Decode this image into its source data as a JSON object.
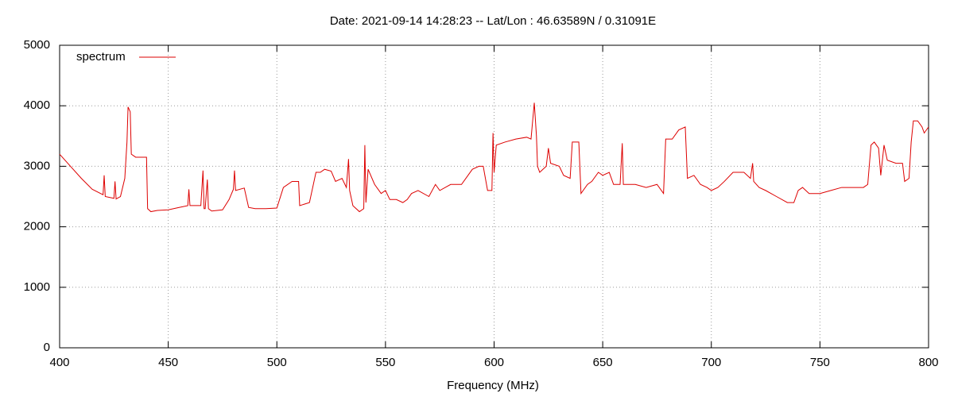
{
  "chart_data": {
    "type": "line",
    "title": "Date: 2021-09-14 14:28:23  --  Lat/Lon : 46.63589N / 0.31091E",
    "x_label": "Frequency (MHz)",
    "x": [
      400,
      405,
      410,
      415,
      420,
      420.5,
      421,
      425,
      425.5,
      426,
      428,
      430,
      431,
      431.5,
      432.5,
      433,
      435,
      440,
      440.5,
      442,
      445,
      450,
      455,
      459,
      459.5,
      460,
      465,
      466,
      466.5,
      467,
      468,
      468.5,
      470,
      475,
      478,
      480,
      480.5,
      481,
      485,
      487,
      490,
      495,
      500,
      503,
      507,
      510,
      510.5,
      515,
      518,
      520,
      522,
      525,
      527,
      530,
      532,
      533,
      533.5,
      535,
      538,
      540,
      540.5,
      541,
      542,
      545,
      548,
      550,
      552,
      555,
      558,
      560,
      562,
      565,
      570,
      573,
      575,
      580,
      585,
      588,
      590,
      593,
      595,
      597,
      599,
      599.5,
      600,
      601,
      605,
      610,
      615,
      617,
      618.5,
      619.5,
      620,
      621,
      624,
      625,
      626,
      630,
      632,
      635,
      636,
      639,
      640,
      643,
      645,
      648,
      650,
      653,
      655,
      658,
      659,
      659.5,
      662,
      665,
      670,
      675,
      678,
      679,
      682,
      685,
      688,
      689,
      692,
      695,
      698,
      700,
      703,
      706,
      710,
      715,
      718,
      719,
      719.5,
      722,
      725,
      730,
      735,
      738,
      740,
      742,
      745,
      750,
      755,
      760,
      765,
      770,
      772,
      773.5,
      775,
      777,
      778,
      779.5,
      781,
      785,
      788,
      789,
      791,
      792,
      793,
      795,
      797,
      798,
      800
    ],
    "series": [
      {
        "name": "spectrum",
        "color": "#dd0000",
        "values": [
          3200,
          3000,
          2800,
          2620,
          2530,
          2850,
          2500,
          2470,
          2750,
          2460,
          2500,
          2800,
          3400,
          3980,
          3900,
          3200,
          3150,
          3150,
          2300,
          2250,
          2270,
          2280,
          2320,
          2350,
          2620,
          2350,
          2350,
          2930,
          2300,
          2300,
          2780,
          2300,
          2260,
          2280,
          2450,
          2620,
          2930,
          2600,
          2640,
          2320,
          2300,
          2300,
          2310,
          2650,
          2750,
          2750,
          2350,
          2400,
          2900,
          2900,
          2950,
          2920,
          2750,
          2800,
          2650,
          3120,
          2600,
          2350,
          2250,
          2300,
          3350,
          2400,
          2950,
          2700,
          2550,
          2600,
          2450,
          2450,
          2400,
          2450,
          2550,
          2600,
          2500,
          2700,
          2600,
          2700,
          2700,
          2850,
          2950,
          3000,
          3000,
          2600,
          2600,
          3550,
          2900,
          3350,
          3400,
          3450,
          3480,
          3450,
          4050,
          3500,
          3000,
          2900,
          3000,
          3300,
          3050,
          3000,
          2850,
          2800,
          3400,
          3400,
          2550,
          2700,
          2750,
          2900,
          2850,
          2900,
          2700,
          2700,
          3380,
          2700,
          2700,
          2700,
          2650,
          2700,
          2550,
          3450,
          3450,
          3600,
          3650,
          2800,
          2850,
          2700,
          2650,
          2600,
          2650,
          2750,
          2900,
          2900,
          2800,
          3050,
          2750,
          2650,
          2600,
          2500,
          2400,
          2400,
          2600,
          2650,
          2550,
          2550,
          2600,
          2650,
          2650,
          2650,
          2700,
          3350,
          3400,
          3300,
          2850,
          3350,
          3100,
          3050,
          3050,
          2750,
          2800,
          3400,
          3750,
          3750,
          3650,
          3550,
          3650
        ]
      }
    ],
    "xlim": [
      400,
      800
    ],
    "xticks": [
      400,
      450,
      500,
      550,
      600,
      650,
      700,
      750,
      800
    ],
    "ylim": [
      0,
      5000
    ],
    "yticks": [
      0,
      1000,
      2000,
      3000,
      4000,
      5000
    ],
    "grid": true,
    "legend": "top-left"
  }
}
